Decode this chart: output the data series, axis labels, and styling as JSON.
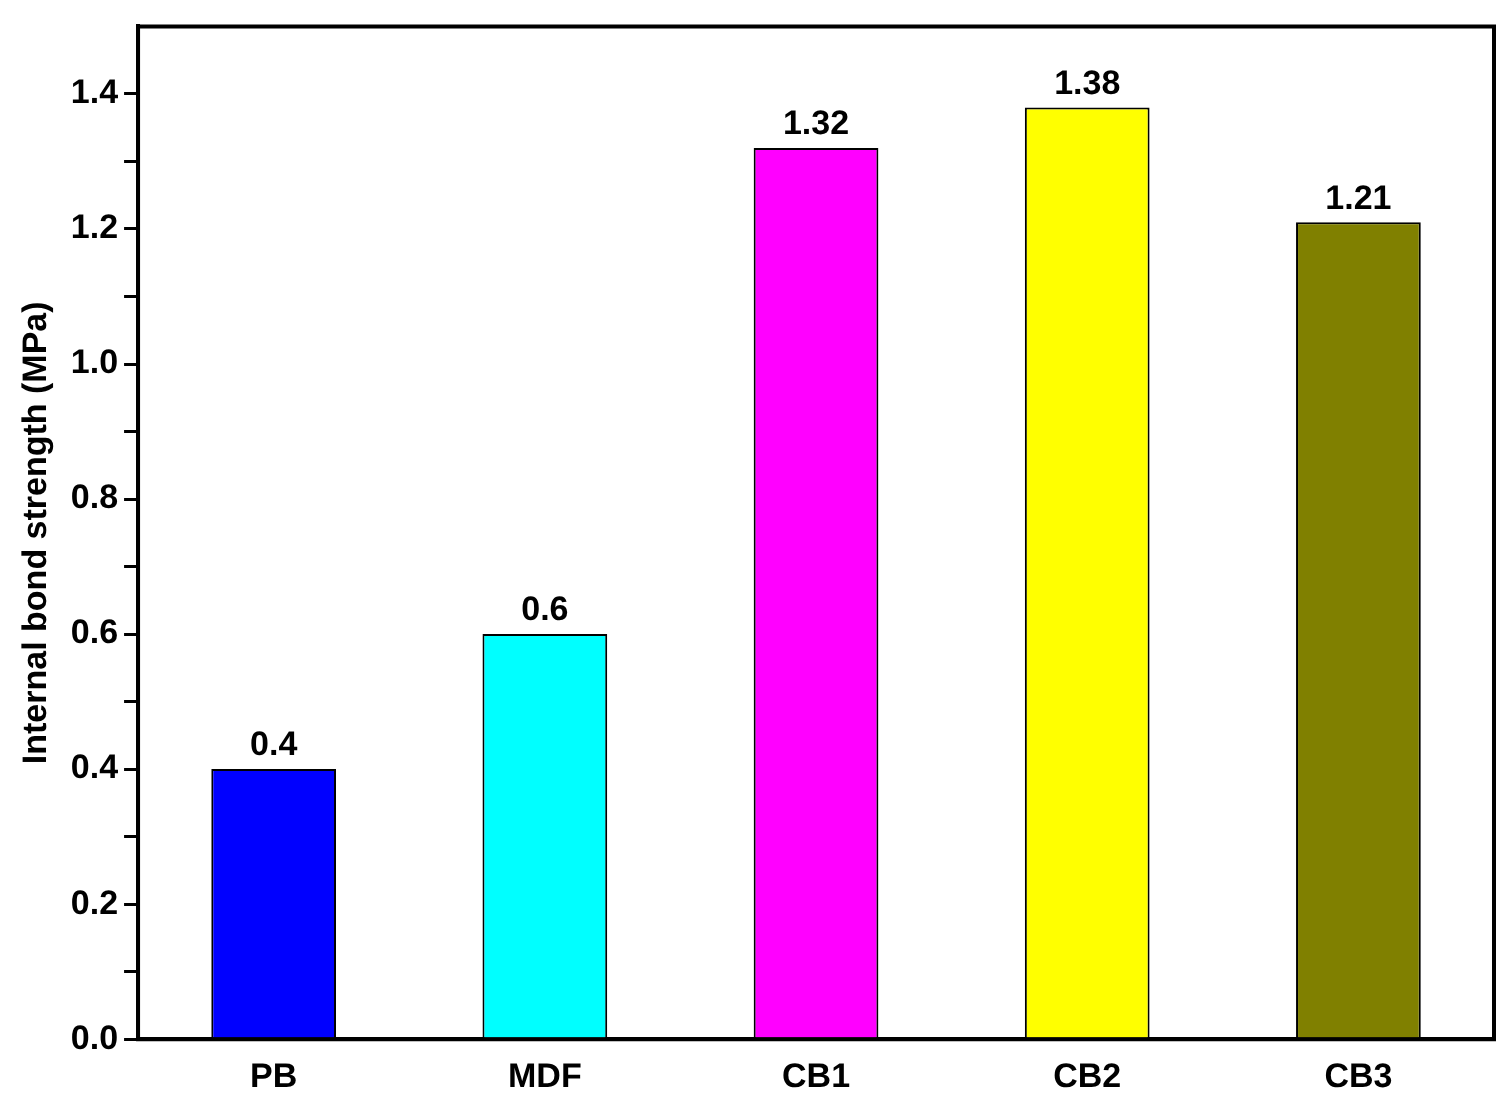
{
  "chart_data": {
    "type": "bar",
    "ylabel": "Internal bond strength (MPa)",
    "categories": [
      "PB",
      "MDF",
      "CB1",
      "CB2",
      "CB3"
    ],
    "values": [
      0.4,
      0.6,
      1.32,
      1.38,
      1.21
    ],
    "colors": [
      "#0000ff",
      "#00ffff",
      "#ff00ff",
      "#ffff00",
      "#808000"
    ],
    "ylim": [
      0,
      1.5
    ],
    "yticks": [
      {
        "value": 0,
        "label": "0.0"
      },
      {
        "value": 0.1,
        "label": null
      },
      {
        "value": 0.2,
        "label": "0.2"
      },
      {
        "value": 0.3,
        "label": null
      },
      {
        "value": 0.4,
        "label": "0.4"
      },
      {
        "value": 0.5,
        "label": null
      },
      {
        "value": 0.6,
        "label": "0.6"
      },
      {
        "value": 0.7,
        "label": null
      },
      {
        "value": 0.8,
        "label": "0.8"
      },
      {
        "value": 0.9,
        "label": null
      },
      {
        "value": 1,
        "label": "1.0"
      },
      {
        "value": 1.1,
        "label": null
      },
      {
        "value": 1.2,
        "label": "1.2"
      },
      {
        "value": 1.3,
        "label": null
      },
      {
        "value": 1.4,
        "label": "1.4"
      }
    ],
    "data_labels": true,
    "grid": false,
    "legend": false
  }
}
